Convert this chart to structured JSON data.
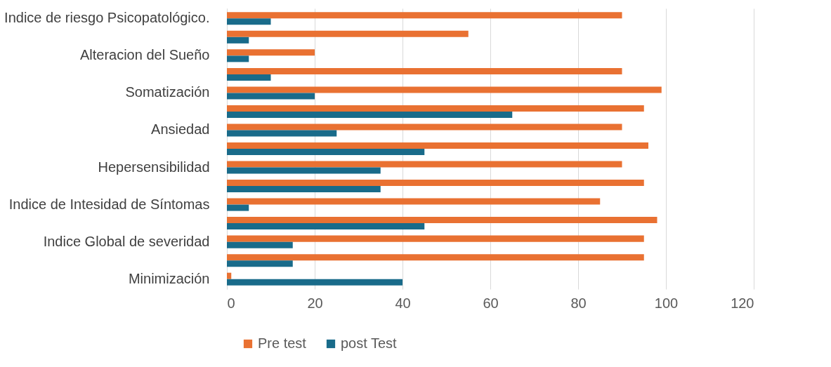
{
  "chart_data": {
    "type": "bar",
    "orientation": "horizontal",
    "categories": [
      "Indice de riesgo Psicopatológico.",
      null,
      "Alteracion del Sueño",
      null,
      "Somatización",
      null,
      "Ansiedad",
      null,
      "Hepersensibilidad",
      null,
      "Indice de Intesidad de Síntomas",
      null,
      "Indice Global de severidad",
      null,
      "Minimización"
    ],
    "series": [
      {
        "name": "Pre test",
        "color": "#e97132",
        "values": [
          90,
          55,
          20,
          90,
          99,
          95,
          90,
          96,
          90,
          95,
          85,
          98,
          95,
          95,
          1
        ]
      },
      {
        "name": "post Test",
        "color": "#196b8a",
        "values": [
          10,
          5,
          5,
          10,
          20,
          65,
          25,
          45,
          35,
          35,
          5,
          45,
          15,
          15,
          40
        ]
      }
    ],
    "xlim": [
      0,
      120
    ],
    "xticks": [
      0,
      20,
      40,
      60,
      80,
      100,
      120
    ],
    "grid": "x",
    "legend": "bottom"
  }
}
